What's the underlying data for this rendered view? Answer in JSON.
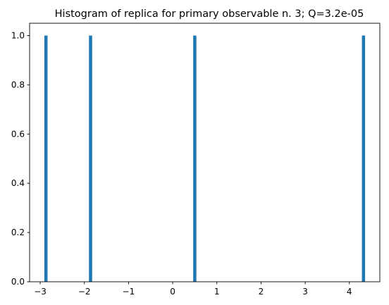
{
  "chart_data": {
    "type": "bar",
    "title": "Histogram of replica for primary observable n. 3; Q=3.2e-05",
    "xlabel": "",
    "ylabel": "",
    "xlim": [
      -3.24,
      4.69
    ],
    "ylim": [
      0,
      1.05
    ],
    "x_ticks": [
      -3,
      -2,
      -1,
      0,
      1,
      2,
      3,
      4
    ],
    "x_tick_labels": [
      "−3",
      "−2",
      "−1",
      "0",
      "1",
      "2",
      "3",
      "4"
    ],
    "y_ticks": [
      0.0,
      0.2,
      0.4,
      0.6,
      0.8,
      1.0
    ],
    "y_tick_labels": [
      "0.0",
      "0.2",
      "0.4",
      "0.6",
      "0.8",
      "1.0"
    ],
    "bin_width": 0.0722,
    "bars": [
      {
        "x": -2.87,
        "value": 1
      },
      {
        "x": -1.86,
        "value": 1
      },
      {
        "x": 0.5,
        "value": 1
      },
      {
        "x": 4.32,
        "value": 1
      }
    ],
    "bar_color": "#1f77b4",
    "grid": false,
    "legend": "none"
  }
}
